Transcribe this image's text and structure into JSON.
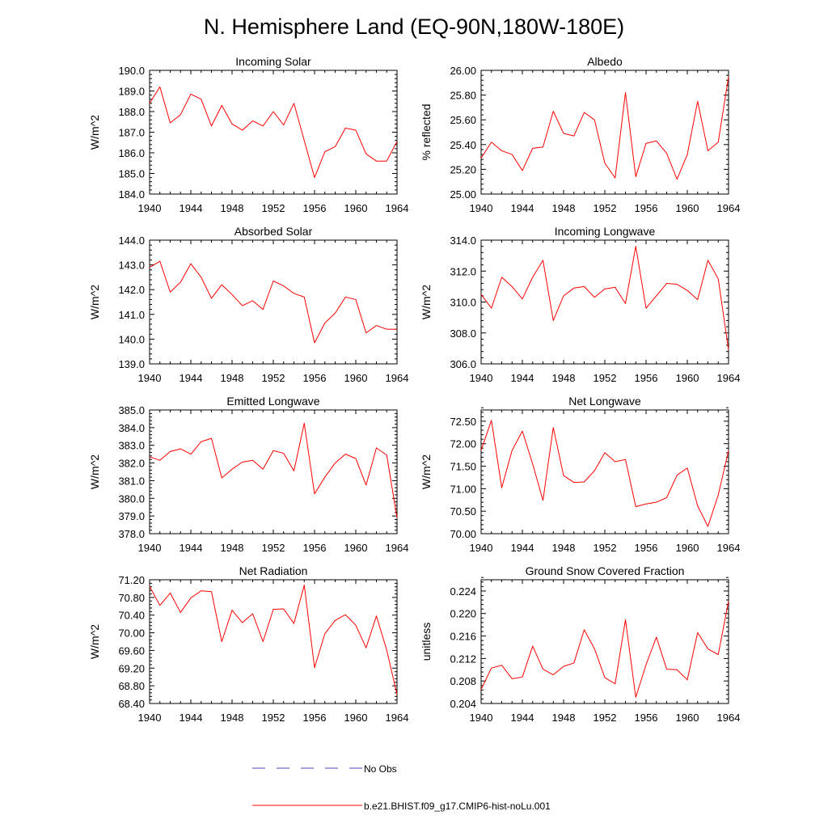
{
  "title": "N. Hemisphere Land (EQ-90N,180W-180E)",
  "colors": {
    "model_line": "#ff0000",
    "obs_line": "#4b4bb8",
    "axis": "#000000"
  },
  "legend": [
    {
      "label": "No Obs",
      "style": "dashed",
      "color": "#4b4bb8"
    },
    {
      "label": "b.e21.BHIST.f09_g17.CMIP6-hist-noLu.001",
      "style": "solid",
      "color": "#ff0000"
    }
  ],
  "chart_data": [
    {
      "type": "line",
      "title": "Incoming Solar",
      "ylabel": "W/m^2",
      "xlim": [
        1940,
        1964
      ],
      "ylim": [
        184.0,
        190.0
      ],
      "xticks": [
        1940,
        1944,
        1948,
        1952,
        1956,
        1960,
        1964
      ],
      "yticks": [
        "184.0",
        "185.0",
        "186.0",
        "187.0",
        "188.0",
        "189.0",
        "190.0"
      ],
      "x": [
        1940,
        1941,
        1942,
        1943,
        1944,
        1945,
        1946,
        1947,
        1948,
        1949,
        1950,
        1951,
        1952,
        1953,
        1954,
        1955,
        1956,
        1957,
        1958,
        1959,
        1960,
        1961,
        1962,
        1963,
        1964
      ],
      "series": [
        {
          "name": "b.e21.BHIST.f09_g17.CMIP6-hist-noLu.001",
          "values": [
            188.4,
            189.2,
            187.45,
            187.85,
            188.85,
            188.6,
            187.3,
            188.3,
            187.4,
            187.1,
            187.55,
            187.3,
            188.0,
            187.35,
            188.4,
            186.6,
            184.8,
            186.05,
            186.3,
            187.2,
            187.1,
            185.95,
            185.6,
            185.6,
            186.55
          ]
        }
      ]
    },
    {
      "type": "line",
      "title": "Albedo",
      "ylabel": "% reflected",
      "xlim": [
        1940,
        1964
      ],
      "ylim": [
        25.0,
        26.0
      ],
      "xticks": [
        1940,
        1944,
        1948,
        1952,
        1956,
        1960,
        1964
      ],
      "yticks": [
        "25.00",
        "25.20",
        "25.40",
        "25.60",
        "25.80",
        "26.00"
      ],
      "x": [
        1940,
        1941,
        1942,
        1943,
        1944,
        1945,
        1946,
        1947,
        1948,
        1949,
        1950,
        1951,
        1952,
        1953,
        1954,
        1955,
        1956,
        1957,
        1958,
        1959,
        1960,
        1961,
        1962,
        1963,
        1964
      ],
      "series": [
        {
          "name": "b.e21.BHIST.f09_g17.CMIP6-hist-noLu.001",
          "values": [
            25.29,
            25.42,
            25.35,
            25.32,
            25.19,
            25.37,
            25.38,
            25.67,
            25.49,
            25.47,
            25.66,
            25.6,
            25.25,
            25.13,
            25.82,
            25.14,
            25.41,
            25.43,
            25.33,
            25.12,
            25.32,
            25.75,
            25.35,
            25.42,
            25.95
          ]
        }
      ]
    },
    {
      "type": "line",
      "title": "Absorbed Solar",
      "ylabel": "W/m^2",
      "xlim": [
        1940,
        1964
      ],
      "ylim": [
        139.0,
        144.0
      ],
      "xticks": [
        1940,
        1944,
        1948,
        1952,
        1956,
        1960,
        1964
      ],
      "yticks": [
        "139.0",
        "140.0",
        "141.0",
        "142.0",
        "143.0",
        "144.0"
      ],
      "x": [
        1940,
        1941,
        1942,
        1943,
        1944,
        1945,
        1946,
        1947,
        1948,
        1949,
        1950,
        1951,
        1952,
        1953,
        1954,
        1955,
        1956,
        1957,
        1958,
        1959,
        1960,
        1961,
        1962,
        1963,
        1964
      ],
      "series": [
        {
          "name": "b.e21.BHIST.f09_g17.CMIP6-hist-noLu.001",
          "values": [
            142.9,
            143.15,
            141.9,
            142.3,
            143.05,
            142.5,
            141.65,
            142.2,
            141.8,
            141.35,
            141.55,
            141.2,
            142.35,
            142.15,
            141.85,
            141.7,
            139.85,
            140.65,
            141.05,
            141.7,
            141.6,
            140.25,
            140.55,
            140.4,
            140.4
          ]
        }
      ]
    },
    {
      "type": "line",
      "title": "Incoming Longwave",
      "ylabel": "W/m^2",
      "xlim": [
        1940,
        1964
      ],
      "ylim": [
        306.0,
        314.0
      ],
      "xticks": [
        1940,
        1944,
        1948,
        1952,
        1956,
        1960,
        1964
      ],
      "yticks": [
        "306.0",
        "308.0",
        "310.0",
        "312.0",
        "314.0"
      ],
      "x": [
        1940,
        1941,
        1942,
        1943,
        1944,
        1945,
        1946,
        1947,
        1948,
        1949,
        1950,
        1951,
        1952,
        1953,
        1954,
        1955,
        1956,
        1957,
        1958,
        1959,
        1960,
        1961,
        1962,
        1963,
        1964
      ],
      "series": [
        {
          "name": "b.e21.BHIST.f09_g17.CMIP6-hist-noLu.001",
          "values": [
            310.5,
            309.6,
            311.6,
            311.0,
            310.2,
            311.6,
            312.7,
            308.8,
            310.4,
            310.9,
            311.0,
            310.3,
            310.85,
            310.95,
            309.9,
            313.6,
            309.6,
            310.4,
            311.2,
            311.15,
            310.75,
            310.15,
            312.7,
            311.5,
            306.9
          ]
        }
      ]
    },
    {
      "type": "line",
      "title": "Emitted Longwave",
      "ylabel": "W/m^2",
      "xlim": [
        1940,
        1964
      ],
      "ylim": [
        378.0,
        385.0
      ],
      "xticks": [
        1940,
        1944,
        1948,
        1952,
        1956,
        1960,
        1964
      ],
      "yticks": [
        "378.0",
        "379.0",
        "380.0",
        "381.0",
        "382.0",
        "383.0",
        "384.0",
        "385.0"
      ],
      "x": [
        1940,
        1941,
        1942,
        1943,
        1944,
        1945,
        1946,
        1947,
        1948,
        1949,
        1950,
        1951,
        1952,
        1953,
        1954,
        1955,
        1956,
        1957,
        1958,
        1959,
        1960,
        1961,
        1962,
        1963,
        1964
      ],
      "series": [
        {
          "name": "b.e21.BHIST.f09_g17.CMIP6-hist-noLu.001",
          "values": [
            382.35,
            382.15,
            382.65,
            382.8,
            382.5,
            383.2,
            383.4,
            381.15,
            381.65,
            382.05,
            382.15,
            381.65,
            382.7,
            382.55,
            381.55,
            384.25,
            380.25,
            381.2,
            382.0,
            382.5,
            382.25,
            380.75,
            382.85,
            382.45,
            378.9
          ]
        }
      ]
    },
    {
      "type": "line",
      "title": "Net Longwave",
      "ylabel": "W/m^2",
      "xlim": [
        1940,
        1964
      ],
      "ylim": [
        70.0,
        72.75
      ],
      "xticks": [
        1940,
        1944,
        1948,
        1952,
        1956,
        1960,
        1964
      ],
      "yticks": [
        "70.00",
        "70.50",
        "71.00",
        "71.50",
        "72.00",
        "72.50"
      ],
      "x": [
        1940,
        1941,
        1942,
        1943,
        1944,
        1945,
        1946,
        1947,
        1948,
        1949,
        1950,
        1951,
        1952,
        1953,
        1954,
        1955,
        1956,
        1957,
        1958,
        1959,
        1960,
        1961,
        1962,
        1963,
        1964
      ],
      "series": [
        {
          "name": "b.e21.BHIST.f09_g17.CMIP6-hist-noLu.001",
          "values": [
            71.85,
            72.52,
            71.02,
            71.85,
            72.28,
            71.55,
            70.74,
            72.36,
            71.29,
            71.14,
            71.15,
            71.4,
            71.8,
            71.6,
            71.65,
            70.6,
            70.66,
            70.7,
            70.8,
            71.3,
            71.46,
            70.62,
            70.16,
            70.86,
            71.85
          ]
        }
      ]
    },
    {
      "type": "line",
      "title": "Net Radiation",
      "ylabel": "W/m^2",
      "xlim": [
        1940,
        1964
      ],
      "ylim": [
        68.4,
        71.2
      ],
      "xticks": [
        1940,
        1944,
        1948,
        1952,
        1956,
        1960,
        1964
      ],
      "yticks": [
        "68.40",
        "68.80",
        "69.20",
        "69.60",
        "70.00",
        "70.40",
        "70.80",
        "71.20"
      ],
      "x": [
        1940,
        1941,
        1942,
        1943,
        1944,
        1945,
        1946,
        1947,
        1948,
        1949,
        1950,
        1951,
        1952,
        1953,
        1954,
        1955,
        1956,
        1957,
        1958,
        1959,
        1960,
        1961,
        1962,
        1963,
        1964
      ],
      "series": [
        {
          "name": "b.e21.BHIST.f09_g17.CMIP6-hist-noLu.001",
          "values": [
            71.05,
            70.62,
            70.9,
            70.46,
            70.79,
            70.95,
            70.93,
            69.8,
            70.51,
            70.23,
            70.43,
            69.8,
            70.53,
            70.54,
            70.21,
            71.08,
            69.21,
            69.98,
            70.28,
            70.41,
            70.17,
            69.66,
            70.38,
            69.61,
            68.6
          ]
        }
      ]
    },
    {
      "type": "line",
      "title": "Ground Snow Covered Fraction",
      "ylabel": "unitless",
      "xlim": [
        1940,
        1964
      ],
      "ylim": [
        0.204,
        0.226
      ],
      "xticks": [
        1940,
        1944,
        1948,
        1952,
        1956,
        1960,
        1964
      ],
      "yticks": [
        "0.204",
        "0.208",
        "0.212",
        "0.216",
        "0.220",
        "0.224"
      ],
      "x": [
        1940,
        1941,
        1942,
        1943,
        1944,
        1945,
        1946,
        1947,
        1948,
        1949,
        1950,
        1951,
        1952,
        1953,
        1954,
        1955,
        1956,
        1957,
        1958,
        1959,
        1960,
        1961,
        1962,
        1963,
        1964
      ],
      "series": [
        {
          "name": "b.e21.BHIST.f09_g17.CMIP6-hist-noLu.001",
          "values": [
            0.2065,
            0.2103,
            0.2108,
            0.2084,
            0.2087,
            0.2142,
            0.2101,
            0.2091,
            0.2106,
            0.2112,
            0.2171,
            0.2137,
            0.2086,
            0.2075,
            0.2189,
            0.2051,
            0.2109,
            0.2158,
            0.2101,
            0.21,
            0.2082,
            0.2166,
            0.2137,
            0.2127,
            0.2222
          ]
        }
      ]
    }
  ]
}
